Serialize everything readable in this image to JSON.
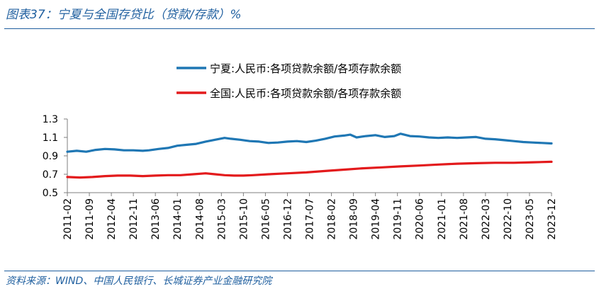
{
  "figure": {
    "title": "图表37：宁夏与全国存贷比（贷款/存款）%",
    "source": "资料来源：WIND、中国人民银行、长城证券产业金融研究院"
  },
  "chart_data": {
    "type": "line",
    "title": "图表37：宁夏与全国存贷比（贷款/存款）%",
    "xlabel": "",
    "ylabel": "",
    "ylim": [
      0.5,
      1.3
    ],
    "yticks": [
      0.5,
      0.7,
      0.9,
      1.1,
      1.3
    ],
    "ytick_labels": [
      "0.5",
      "0.7",
      "0.9",
      "1.1",
      "1.3"
    ],
    "xlim": [
      "2011-02",
      "2023-12"
    ],
    "xtick_labels": [
      "2011-02",
      "2011-09",
      "2012-04",
      "2012-11",
      "2013-06",
      "2014-01",
      "2014-08",
      "2015-03",
      "2015-10",
      "2016-05",
      "2016-12",
      "2017-07",
      "2018-02",
      "2018-09",
      "2019-04",
      "2019-11",
      "2020-06",
      "2021-01",
      "2021-08",
      "2022-03",
      "2022-10",
      "2023-05",
      "2023-12"
    ],
    "legend_position": "top-center",
    "grid": false,
    "series": [
      {
        "name": "宁夏:人民币:各项贷款余额/各项存款余额",
        "color": "#1f77b4",
        "points": [
          [
            "2011-02",
            0.945
          ],
          [
            "2011-05",
            0.955
          ],
          [
            "2011-08",
            0.945
          ],
          [
            "2011-11",
            0.965
          ],
          [
            "2012-02",
            0.975
          ],
          [
            "2012-05",
            0.97
          ],
          [
            "2012-08",
            0.96
          ],
          [
            "2012-11",
            0.96
          ],
          [
            "2013-02",
            0.955
          ],
          [
            "2013-04",
            0.96
          ],
          [
            "2013-07",
            0.975
          ],
          [
            "2013-10",
            0.985
          ],
          [
            "2014-01",
            1.01
          ],
          [
            "2014-04",
            1.02
          ],
          [
            "2014-07",
            1.03
          ],
          [
            "2014-10",
            1.055
          ],
          [
            "2015-01",
            1.075
          ],
          [
            "2015-04",
            1.095
          ],
          [
            "2015-06",
            1.085
          ],
          [
            "2015-09",
            1.075
          ],
          [
            "2015-12",
            1.06
          ],
          [
            "2016-03",
            1.055
          ],
          [
            "2016-06",
            1.04
          ],
          [
            "2016-09",
            1.045
          ],
          [
            "2016-12",
            1.055
          ],
          [
            "2017-03",
            1.06
          ],
          [
            "2017-06",
            1.05
          ],
          [
            "2017-09",
            1.065
          ],
          [
            "2017-12",
            1.085
          ],
          [
            "2018-03",
            1.11
          ],
          [
            "2018-06",
            1.12
          ],
          [
            "2018-08",
            1.13
          ],
          [
            "2018-10",
            1.1
          ],
          [
            "2019-01",
            1.115
          ],
          [
            "2019-04",
            1.125
          ],
          [
            "2019-07",
            1.105
          ],
          [
            "2019-10",
            1.115
          ],
          [
            "2019-12",
            1.14
          ],
          [
            "2020-03",
            1.115
          ],
          [
            "2020-06",
            1.11
          ],
          [
            "2020-09",
            1.1
          ],
          [
            "2020-12",
            1.095
          ],
          [
            "2021-03",
            1.1
          ],
          [
            "2021-06",
            1.095
          ],
          [
            "2021-09",
            1.1
          ],
          [
            "2021-12",
            1.105
          ],
          [
            "2022-03",
            1.085
          ],
          [
            "2022-06",
            1.08
          ],
          [
            "2022-09",
            1.07
          ],
          [
            "2022-12",
            1.06
          ],
          [
            "2023-03",
            1.05
          ],
          [
            "2023-06",
            1.045
          ],
          [
            "2023-09",
            1.04
          ],
          [
            "2023-12",
            1.035
          ]
        ]
      },
      {
        "name": "全国:人民币:各项贷款余额/各项存款余额",
        "color": "#e31a1c",
        "points": [
          [
            "2011-02",
            0.67
          ],
          [
            "2011-06",
            0.665
          ],
          [
            "2011-10",
            0.67
          ],
          [
            "2012-02",
            0.68
          ],
          [
            "2012-06",
            0.685
          ],
          [
            "2012-10",
            0.685
          ],
          [
            "2013-02",
            0.68
          ],
          [
            "2013-06",
            0.685
          ],
          [
            "2013-10",
            0.69
          ],
          [
            "2014-02",
            0.69
          ],
          [
            "2014-06",
            0.7
          ],
          [
            "2014-10",
            0.71
          ],
          [
            "2015-01",
            0.7
          ],
          [
            "2015-04",
            0.69
          ],
          [
            "2015-07",
            0.685
          ],
          [
            "2015-10",
            0.685
          ],
          [
            "2016-01",
            0.69
          ],
          [
            "2016-06",
            0.7
          ],
          [
            "2016-12",
            0.71
          ],
          [
            "2017-06",
            0.72
          ],
          [
            "2017-12",
            0.735
          ],
          [
            "2018-06",
            0.75
          ],
          [
            "2018-12",
            0.765
          ],
          [
            "2019-06",
            0.775
          ],
          [
            "2019-12",
            0.785
          ],
          [
            "2020-06",
            0.795
          ],
          [
            "2020-12",
            0.805
          ],
          [
            "2021-06",
            0.815
          ],
          [
            "2021-12",
            0.82
          ],
          [
            "2022-06",
            0.825
          ],
          [
            "2022-12",
            0.825
          ],
          [
            "2023-06",
            0.83
          ],
          [
            "2023-12",
            0.835
          ]
        ]
      }
    ]
  }
}
